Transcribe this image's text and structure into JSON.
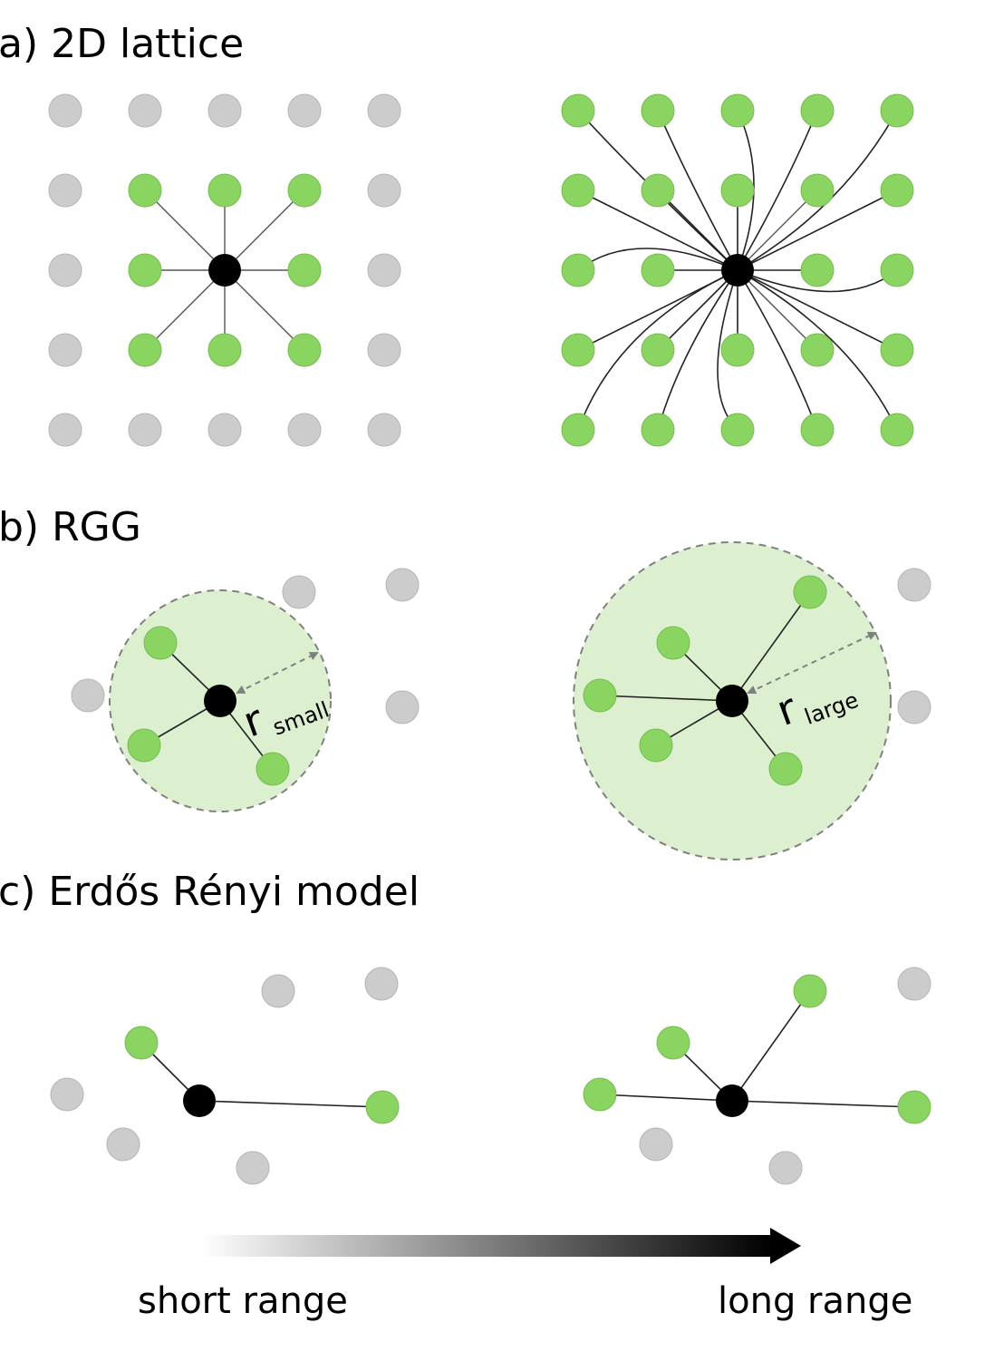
{
  "sections": {
    "a": {
      "label": "a) 2D lattice"
    },
    "b": {
      "label": "b) RGG",
      "r_main": "r",
      "r_small_sub": "small",
      "r_large_sub": "large"
    },
    "c": {
      "label": "c) Erdős Rényi model"
    }
  },
  "range_axis": {
    "short_label": "short range",
    "long_label": "long range"
  },
  "colors": {
    "green": "#8ad461",
    "gray": "#cccccc",
    "center": "#000000",
    "disk": "#dcf0d0"
  }
}
